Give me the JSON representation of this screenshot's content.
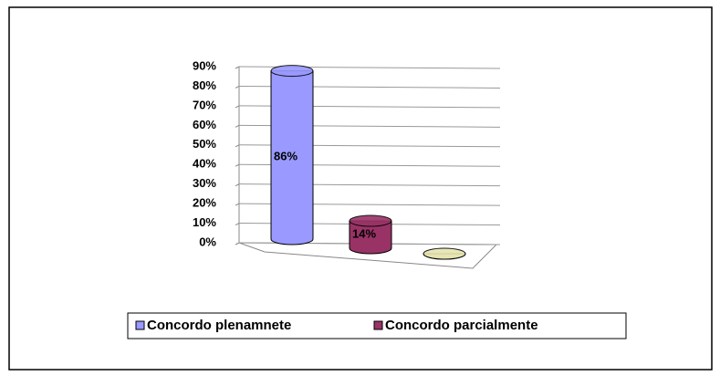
{
  "chart_data": {
    "type": "cylinder",
    "categories": [
      "Concordo plenamnete",
      "Concordo parcialmente",
      null
    ],
    "values": [
      86,
      14,
      0
    ],
    "value_labels": [
      "86%",
      "14%",
      null
    ],
    "colors": [
      "#9999ff",
      "#993366",
      "#e6e4b0"
    ],
    "ylim": [
      0,
      90
    ],
    "yticks": [
      {
        "value": 0,
        "label": "0%"
      },
      {
        "value": 10,
        "label": "10%"
      },
      {
        "value": 20,
        "label": "20%"
      },
      {
        "value": 30,
        "label": "30%"
      },
      {
        "value": 40,
        "label": "40%"
      },
      {
        "value": 50,
        "label": "50%"
      },
      {
        "value": 60,
        "label": "60%"
      },
      {
        "value": 70,
        "label": "70%"
      },
      {
        "value": 80,
        "label": "80%"
      },
      {
        "value": 90,
        "label": "90%"
      }
    ],
    "grid": true
  }
}
